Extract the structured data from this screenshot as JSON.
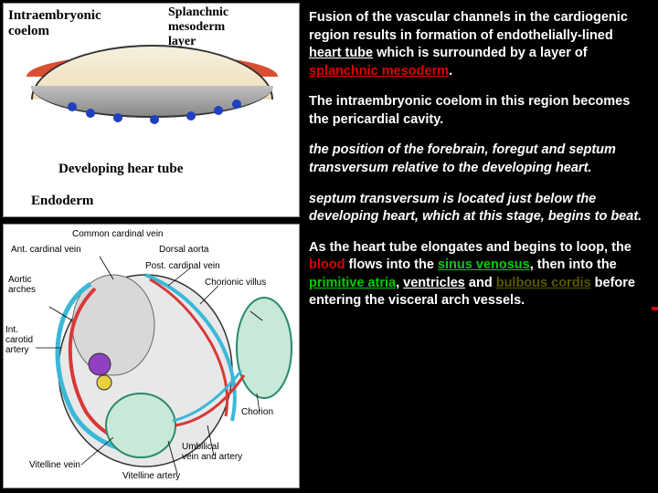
{
  "top_diagram": {
    "labels": {
      "intraembryonic": "Intraembryonic\ncoelom",
      "splanchnic": "Splanchnic\nmesoderm\nlayer",
      "developing": "Developing hear tube",
      "endoderm": "Endoderm"
    },
    "colors": {
      "mesoderm": "#d85030",
      "tube": "#909090",
      "background": "#ffffff",
      "dots": "#2040c0"
    }
  },
  "bottom_diagram": {
    "labels": {
      "common_cardinal": "Common cardinal vein",
      "ant_cardinal": "Ant. cardinal vein",
      "dorsal_aorta": "Dorsal aorta",
      "aortic_arches": "Aortic\narches",
      "post_cardinal": "Post. cardinal vein",
      "chorionic_villus": "Chorionic villus",
      "int_carotid": "Int.\ncarotid\nartery",
      "chorion": "Chorion",
      "vitelline_vein": "Vitelline vein",
      "umbilical": "Umbilical\nvein and artery",
      "vitelline_artery": "Vitelline artery"
    },
    "colors": {
      "vein": "#3bb8d8",
      "artery": "#d83838",
      "body": "#e8e8e8",
      "sac": "#c8e8d8"
    }
  },
  "text": {
    "p1_a": "Fusion of the vascular channels in the cardiogenic region results in formation of endothelially-lined ",
    "p1_heart": "heart tube",
    "p1_b": " which is surrounded by a layer of ",
    "p1_splanchnic": "splanchnic mesoderm",
    "p1_c": ".",
    "p2": "The intraembryonic coelom in this region becomes the pericardial cavity.",
    "p3": "the position of the forebrain, foregut and septum transversum relative to the developing heart.",
    "p4": "septum transversum is located just below the developing heart, which at this stage, begins to beat.",
    "p5_a": "As the heart tube elongates and begins to loop, the ",
    "p5_blood": "blood",
    "p5_b": " flows into the ",
    "p5_sinus": "sinus venosus",
    "p5_c": ", then into the ",
    "p5_atria": "primitive atria",
    "p5_d": ", ",
    "p5_ventricles": "ventricles",
    "p5_e": " and ",
    "p5_bulbous": "bulbous cordis",
    "p5_f": " before entering the visceral arch vessels."
  }
}
